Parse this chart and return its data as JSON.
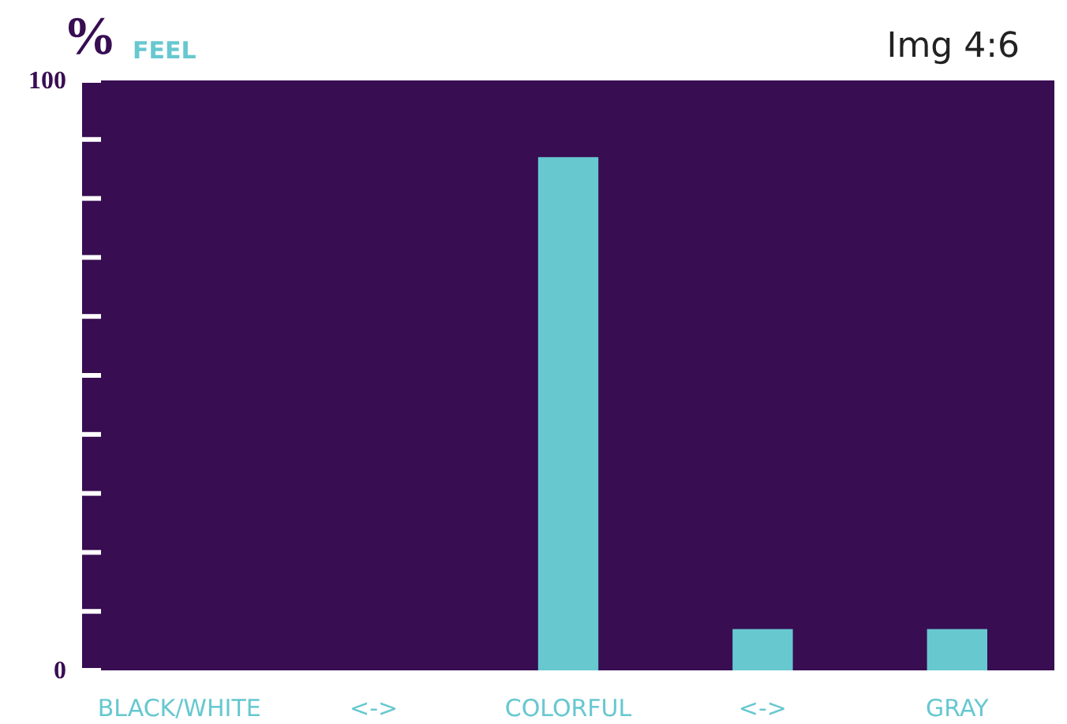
{
  "chart_data": {
    "type": "bar",
    "title": "%",
    "subtitle": "FEEL",
    "annotations": [
      "Img 4:6"
    ],
    "categories": [
      "BLACK/WHITE",
      "<->",
      "COLORFUL",
      "<->",
      "GRAY"
    ],
    "values": [
      0,
      0,
      87,
      7,
      7
    ],
    "color": "#67c8d0",
    "ylim": [
      0,
      100
    ],
    "yticks": [
      0,
      {
        "value": 10,
        "label": null
      },
      {
        "value": 20,
        "label": null
      },
      {
        "value": 30,
        "label": null
      },
      {
        "value": 40,
        "label": null
      },
      {
        "value": 50,
        "label": null
      },
      {
        "value": 60,
        "label": null
      },
      {
        "value": 70,
        "label": null
      },
      {
        "value": 80,
        "label": null
      },
      {
        "value": 90,
        "label": null
      },
      100
    ]
  }
}
